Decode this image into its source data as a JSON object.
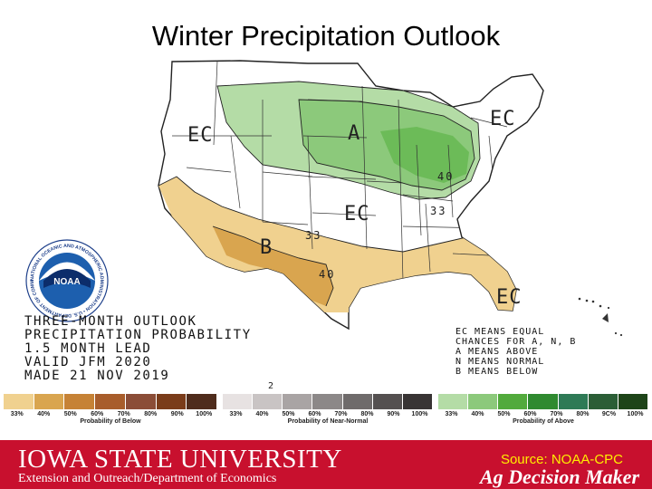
{
  "title": "Winter Precipitation Outlook",
  "map_labels": {
    "ec_west": "EC",
    "ec_northeast": "EC",
    "ec_central": "EC",
    "ec_southeast": "EC",
    "above": "A",
    "below": "B",
    "contour_40_north": "40",
    "contour_33_north": "33",
    "contour_33_south": "33",
    "contour_40_south": "40",
    "stray_2": "2"
  },
  "outlook_info": {
    "line1": "THREE-MONTH OUTLOOK",
    "line2": "PRECIPITATION PROBABILITY",
    "line3": "1.5 MONTH LEAD",
    "line4": "VALID JFM 2020",
    "line5": "MADE 21 NOV 2019"
  },
  "ec_explanation": {
    "line1": "EC MEANS EQUAL",
    "line2": "CHANCES FOR A, N, B",
    "line3": "A MEANS ABOVE",
    "line4": "N MEANS NORMAL",
    "line5": "B MEANS BELOW"
  },
  "noaa_logo": {
    "center_text": "NOAA",
    "ring_text": "NATIONAL OCEANIC AND ATMOSPHERIC ADMINISTRATION • U.S. DEPARTMENT OF COMMERCE"
  },
  "legend": {
    "below": {
      "ticks": [
        "33%",
        "40%",
        "50%",
        "60%",
        "70%",
        "80%",
        "90%",
        "100%"
      ],
      "caption": "Probability of Below",
      "colors": [
        "#f0d18f",
        "#d9a54f",
        "#c68235",
        "#a85d2b",
        "#8b4d37",
        "#7a3c1a",
        "#4f2c1c"
      ]
    },
    "normal": {
      "ticks": [
        "33%",
        "40%",
        "50%",
        "60%",
        "70%",
        "80%",
        "90%",
        "100%"
      ],
      "caption": "Probability of Near-Normal",
      "colors": [
        "#e7e2e2",
        "#c9c4c4",
        "#a9a4a4",
        "#8c8888",
        "#6f6b6b",
        "#545050",
        "#383434"
      ]
    },
    "above": {
      "ticks": [
        "33%",
        "40%",
        "50%",
        "60%",
        "70%",
        "80%",
        "9C%",
        "100%"
      ],
      "caption": "Probability of Above",
      "colors": [
        "#b4dca6",
        "#8cc97b",
        "#52aa3c",
        "#2f8a30",
        "#2e7a56",
        "#2b5e36",
        "#1e4419"
      ]
    }
  },
  "footer": {
    "university": "IOWA STATE UNIVERSITY",
    "department": "Extension and Outreach/Department of Economics",
    "source": "Source: NOAA-CPC",
    "program": "Ag Decision Maker"
  }
}
